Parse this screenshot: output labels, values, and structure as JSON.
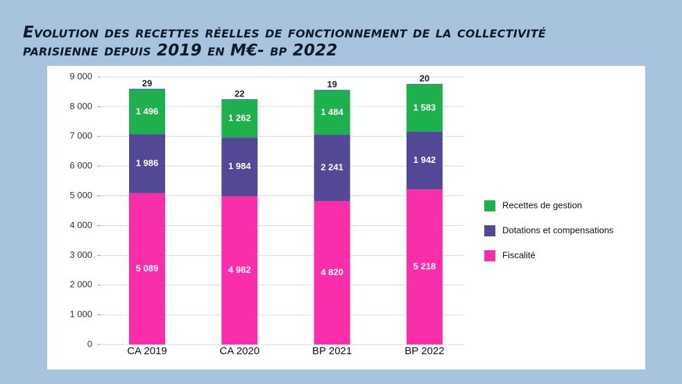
{
  "title_lines": [
    "Evolution des recettes réelles de fonctionnement de la collectivité",
    "parisienne depuis 2019 en M€- bp 2022"
  ],
  "chart_data": {
    "type": "stacked_bar",
    "categories": [
      "CA 2019",
      "CA 2020",
      "BP 2021",
      "BP 2022"
    ],
    "series": [
      {
        "name": "Fiscalité",
        "color": "#fb2eaa",
        "values": [
          5089,
          4982,
          4820,
          5218
        ],
        "value_labels": [
          "5 089",
          "4 982",
          "4 820",
          "5 218"
        ]
      },
      {
        "name": "Dotations et compensations",
        "color": "#534896",
        "values": [
          1986,
          1984,
          2241,
          1942
        ],
        "value_labels": [
          "1 986",
          "1 984",
          "2 241",
          "1 942"
        ]
      },
      {
        "name": "Recettes de gestion",
        "color": "#1fb04e",
        "values": [
          1496,
          1262,
          1484,
          1583
        ],
        "value_labels": [
          "1 496",
          "1 262",
          "1 484",
          "1 583"
        ]
      },
      {
        "color": "#2f5f9c",
        "values": [
          29,
          22,
          19,
          20
        ]
      }
    ],
    "ylim": [
      0,
      9000
    ],
    "yticks": [
      0,
      {
        "value": 1000,
        "label": "1 000"
      },
      {
        "value": 2000,
        "label": "2 000"
      },
      {
        "value": 3000,
        "label": "3 000"
      },
      {
        "value": 4000,
        "label": "4 000"
      },
      {
        "value": 5000,
        "label": "5 000"
      },
      {
        "value": 6000,
        "label": "6 000"
      },
      {
        "value": 7000,
        "label": "7 000"
      },
      {
        "value": 8000,
        "label": "8 000"
      },
      {
        "value": 9000,
        "label": "9 000"
      }
    ],
    "grid": true,
    "legend": "right"
  }
}
